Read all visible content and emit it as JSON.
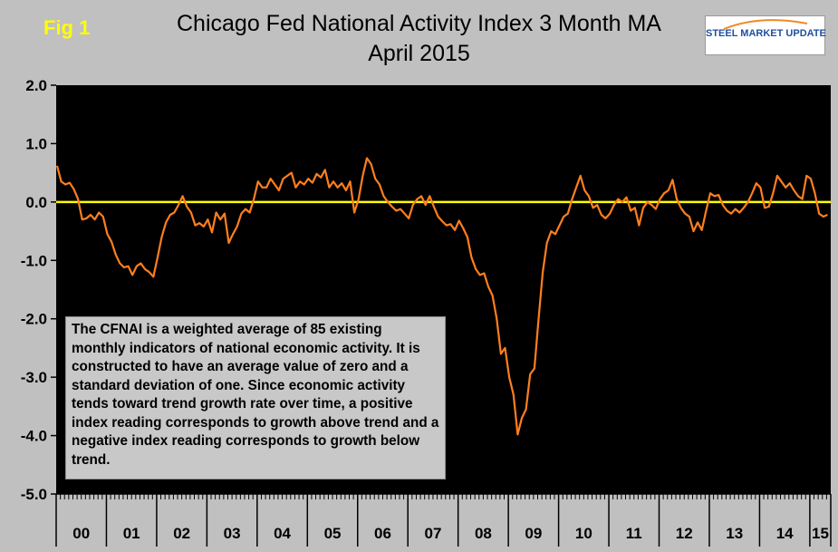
{
  "figure": {
    "label": "Fig 1",
    "title_line1": "Chicago Fed National Activity Index 3 Month MA",
    "title_line2": "April 2015",
    "logo_text": "STEEL MARKET UPDATE",
    "note": "The CFNAI is a weighted average of 85 existing monthly indicators of national economic activity. It is constructed to have an average value of zero and a standard deviation of one. Since economic activity tends toward trend growth rate over time, a positive index reading corresponds to growth above trend and a negative index reading corresponds to growth below trend."
  },
  "colors": {
    "background": "#c0c0c0",
    "plot_background": "#000000",
    "series_line": "#ff7f1e",
    "zero_line": "#ffff00",
    "label_yellow": "#ffff00",
    "logo_blue": "#1f4fa0",
    "logo_orange": "#f08a24"
  },
  "chart_data": {
    "type": "line",
    "title": "Chicago Fed National Activity Index 3 Month MA April 2015",
    "ylim": [
      -5,
      2
    ],
    "yticks": [
      {
        "value": 2,
        "label": "2.0"
      },
      {
        "value": 1,
        "label": "1.0"
      },
      {
        "value": 0,
        "label": "0.0"
      },
      {
        "value": -1,
        "label": "-1.0"
      },
      {
        "value": -2,
        "label": "-2.0"
      },
      {
        "value": -3,
        "label": "-3.0"
      },
      {
        "value": -4,
        "label": "-4.0"
      },
      {
        "value": -5,
        "label": "-5.0"
      }
    ],
    "x_categories": [
      "00",
      "01",
      "02",
      "03",
      "04",
      "05",
      "06",
      "07",
      "08",
      "09",
      "10",
      "11",
      "12",
      "13",
      "14",
      "15"
    ],
    "reference_line": {
      "value": 0
    },
    "grid": false,
    "series": [
      {
        "start": "2000-01",
        "frequency": "monthly",
        "values": [
          0.62,
          0.35,
          0.3,
          0.33,
          0.22,
          0.05,
          -0.3,
          -0.28,
          -0.22,
          -0.3,
          -0.18,
          -0.25,
          -0.55,
          -0.68,
          -0.9,
          -1.05,
          -1.12,
          -1.1,
          -1.25,
          -1.1,
          -1.05,
          -1.15,
          -1.2,
          -1.28,
          -0.95,
          -0.6,
          -0.35,
          -0.22,
          -0.18,
          -0.05,
          0.1,
          -0.08,
          -0.18,
          -0.4,
          -0.36,
          -0.42,
          -0.3,
          -0.52,
          -0.18,
          -0.3,
          -0.2,
          -0.7,
          -0.55,
          -0.42,
          -0.2,
          -0.12,
          -0.18,
          0.05,
          0.35,
          0.25,
          0.25,
          0.4,
          0.3,
          0.2,
          0.4,
          0.45,
          0.5,
          0.25,
          0.35,
          0.3,
          0.4,
          0.33,
          0.48,
          0.42,
          0.55,
          0.25,
          0.35,
          0.25,
          0.32,
          0.2,
          0.35,
          -0.18,
          0.05,
          0.45,
          0.75,
          0.65,
          0.4,
          0.3,
          0.1,
          0.0,
          -0.08,
          -0.15,
          -0.12,
          -0.2,
          -0.28,
          -0.05,
          0.05,
          0.1,
          -0.05,
          0.1,
          -0.08,
          -0.25,
          -0.33,
          -0.4,
          -0.38,
          -0.48,
          -0.32,
          -0.45,
          -0.6,
          -0.95,
          -1.15,
          -1.25,
          -1.22,
          -1.45,
          -1.6,
          -2.0,
          -2.6,
          -2.5,
          -3.0,
          -3.3,
          -3.98,
          -3.7,
          -3.55,
          -2.95,
          -2.85,
          -2.0,
          -1.2,
          -0.7,
          -0.5,
          -0.55,
          -0.4,
          -0.25,
          -0.2,
          0.05,
          0.25,
          0.45,
          0.2,
          0.1,
          -0.1,
          -0.05,
          -0.22,
          -0.28,
          -0.2,
          -0.05,
          0.05,
          0.0,
          0.08,
          -0.15,
          -0.1,
          -0.4,
          -0.1,
          0.0,
          -0.05,
          -0.12,
          0.05,
          0.15,
          0.2,
          0.38,
          0.05,
          -0.1,
          -0.2,
          -0.25,
          -0.5,
          -0.35,
          -0.48,
          -0.15,
          0.15,
          0.1,
          0.12,
          -0.05,
          -0.15,
          -0.2,
          -0.12,
          -0.18,
          -0.1,
          0.0,
          0.15,
          0.32,
          0.25,
          -0.1,
          -0.08,
          0.15,
          0.45,
          0.35,
          0.25,
          0.32,
          0.2,
          0.1,
          0.05,
          0.45,
          0.4,
          0.15,
          -0.2,
          -0.25,
          -0.22
        ]
      }
    ]
  }
}
